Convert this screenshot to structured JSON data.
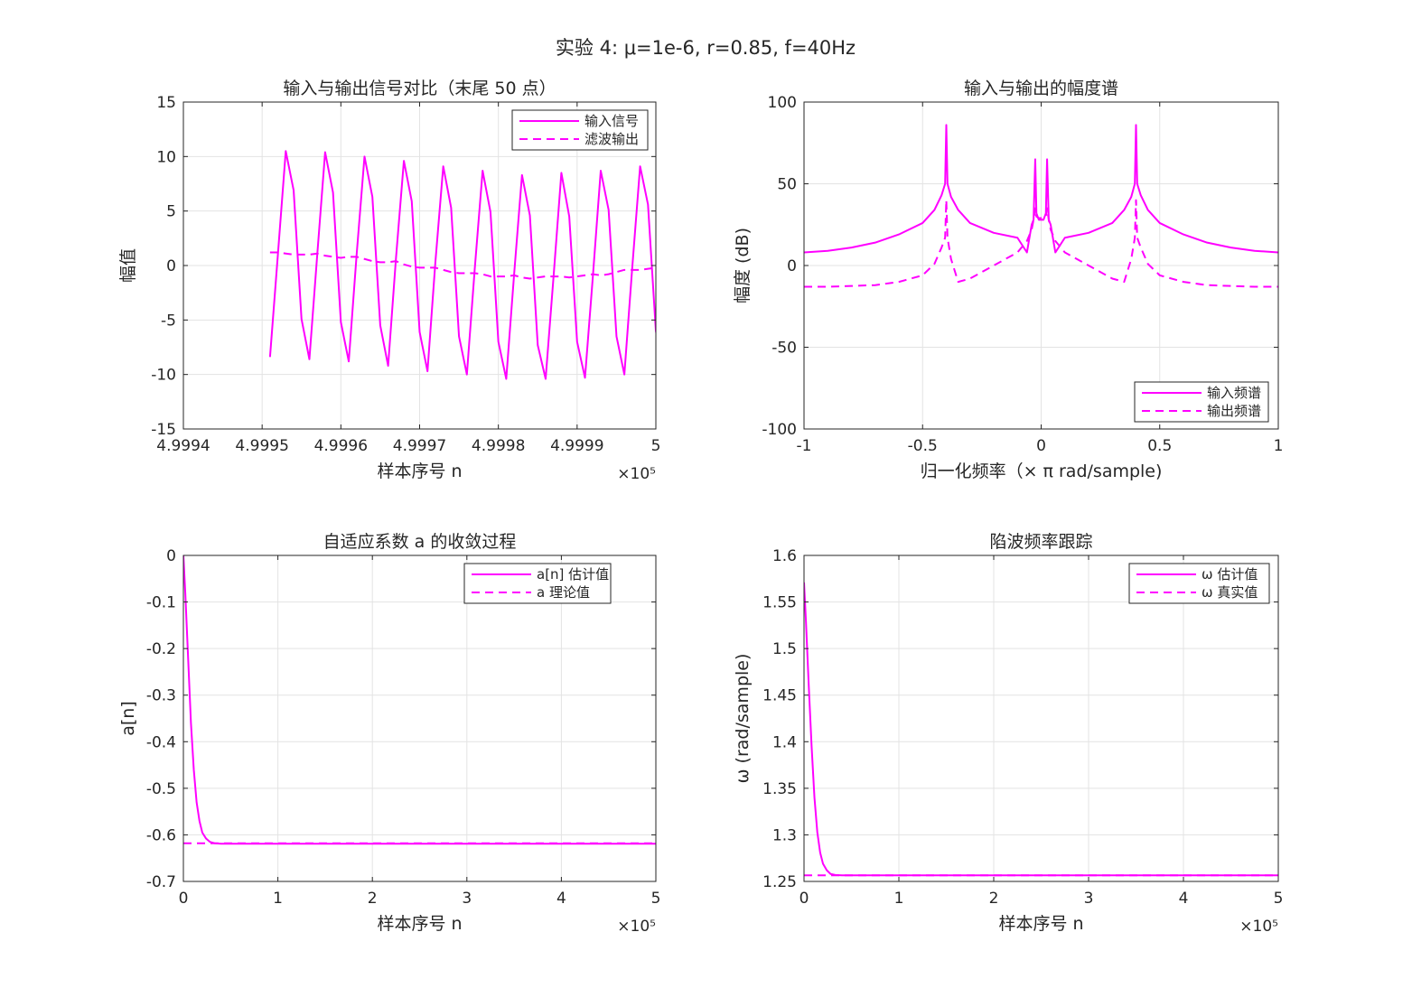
{
  "figure": {
    "suptitle": "实验 4: μ=1e-6, r=0.85, f=40Hz",
    "line_color": "#ff00ff"
  },
  "chart_data": [
    {
      "type": "line",
      "title": "输入与输出信号对比（末尾 50 点）",
      "xlabel": "样本序号 n",
      "ylabel": "幅值",
      "xlim": [
        499940,
        500000
      ],
      "ylim": [
        -15,
        15
      ],
      "xticks": [
        "4.9994",
        "4.9995",
        "4.9996",
        "4.9997",
        "4.9998",
        "4.9999",
        "5"
      ],
      "yticks": [
        "-15",
        "-10",
        "-5",
        "0",
        "5",
        "10",
        "15"
      ],
      "x_exponent": "×10⁵",
      "grid": true,
      "legend_position": "top-right",
      "x_start": 499951,
      "x_step": 1,
      "series": [
        {
          "name": "输入信号",
          "style": "solid",
          "values": [
            -8.4,
            1.0,
            10.5,
            6.9,
            -4.9,
            -8.6,
            1.0,
            10.4,
            6.7,
            -5.2,
            -8.8,
            1.0,
            10.0,
            6.3,
            -5.5,
            -9.2,
            0.7,
            9.6,
            5.9,
            -6.1,
            -9.7,
            0.3,
            9.1,
            5.3,
            -6.5,
            -10.0,
            -0.3,
            8.7,
            4.9,
            -7.0,
            -10.4,
            -0.8,
            8.3,
            4.6,
            -7.3,
            -10.4,
            -1.1,
            8.5,
            4.5,
            -7.0,
            -10.3,
            -1.0,
            8.7,
            5.1,
            -6.5,
            -10.0,
            -0.2,
            9.1,
            5.6,
            -6.0,
            -9.5
          ]
        },
        {
          "name": "滤波输出",
          "style": "dashed",
          "values": [
            null,
            null,
            null,
            null,
            null,
            null,
            null,
            null,
            null,
            null,
            null,
            null,
            null,
            null,
            null,
            null,
            null,
            null,
            null,
            null,
            null,
            null,
            null,
            null,
            null,
            null,
            null,
            null,
            null,
            null,
            null,
            null,
            null,
            null,
            null,
            null,
            null,
            null,
            null,
            null,
            null,
            null,
            null,
            null,
            null,
            null,
            null,
            null,
            null,
            null,
            null
          ]
        }
      ],
      "output_values": [
        1.2,
        1.2,
        1.1,
        1.0,
        1.0,
        1.0,
        1.1,
        0.9,
        0.8,
        0.7,
        0.8,
        0.8,
        0.6,
        0.4,
        0.3,
        0.3,
        0.4,
        0.1,
        -0.1,
        -0.2,
        -0.2,
        -0.2,
        -0.4,
        -0.6,
        -0.7,
        -0.7,
        -0.7,
        -0.8,
        -1.0,
        -1.0,
        -1.0,
        -0.9,
        -1.1,
        -1.2,
        -1.1,
        -1.0,
        -1.0,
        -1.0,
        -1.1,
        -1.0,
        -0.9,
        -0.8,
        -0.9,
        -0.8,
        -0.6,
        -0.4,
        -0.4,
        -0.4,
        -0.3,
        -0.2,
        -0.1
      ]
    },
    {
      "type": "line",
      "title": "输入与输出的幅度谱",
      "xlabel": "归一化频率（× π  rad/sample)",
      "ylabel": "幅度 (dB)",
      "xlim": [
        -1,
        1
      ],
      "ylim": [
        -100,
        100
      ],
      "xticks": [
        "-1",
        "-0.5",
        "0",
        "0.5",
        "1"
      ],
      "yticks": [
        "-100",
        "-50",
        "0",
        "50",
        "100"
      ],
      "grid": true,
      "legend_position": "bottom-right",
      "x": [
        -1.0,
        -0.9,
        -0.8,
        -0.7,
        -0.6,
        -0.5,
        -0.45,
        -0.42,
        -0.405,
        -0.4,
        -0.395,
        -0.38,
        -0.35,
        -0.3,
        -0.2,
        -0.1,
        -0.06,
        -0.04,
        -0.032,
        -0.025,
        -0.02,
        -0.01,
        0.0,
        0.01,
        0.02,
        0.025,
        0.032,
        0.04,
        0.06,
        0.1,
        0.2,
        0.3,
        0.35,
        0.38,
        0.395,
        0.4,
        0.405,
        0.42,
        0.45,
        0.5,
        0.6,
        0.7,
        0.8,
        0.9,
        1.0
      ],
      "series": [
        {
          "name": "输入频谱",
          "style": "solid",
          "values": [
            8,
            9,
            11,
            14,
            19,
            26,
            34,
            43,
            50,
            86,
            50,
            42,
            34,
            26,
            20,
            17,
            8,
            25,
            28,
            65,
            32,
            28,
            28,
            28,
            32,
            65,
            28,
            25,
            8,
            17,
            20,
            26,
            34,
            42,
            50,
            86,
            50,
            43,
            34,
            26,
            19,
            14,
            11,
            9,
            8
          ]
        },
        {
          "name": "输出频谱",
          "style": "dashed",
          "values": [
            -13,
            -13,
            -12.5,
            -12,
            -10,
            -6,
            1,
            11,
            17,
            40,
            17,
            4,
            -10,
            -8,
            0,
            8,
            15,
            22,
            28,
            35,
            30,
            29,
            29,
            29,
            30,
            35,
            28,
            22,
            15,
            8,
            0,
            -8,
            -10,
            4,
            17,
            40,
            17,
            11,
            1,
            -6,
            -10,
            -12,
            -12.5,
            -13,
            -13
          ]
        }
      ]
    },
    {
      "type": "line",
      "title": "自适应系数 a 的收敛过程",
      "xlabel": "样本序号 n",
      "ylabel": "a[n]",
      "xlim": [
        0,
        500000
      ],
      "ylim": [
        -0.7,
        0
      ],
      "xticks": [
        "0",
        "1",
        "2",
        "3",
        "4",
        "5"
      ],
      "yticks": [
        "-0.7",
        "-0.6",
        "-0.5",
        "-0.4",
        "-0.3",
        "-0.2",
        "-0.1",
        "0"
      ],
      "x_exponent": "×10⁵",
      "grid": true,
      "legend_position": "top-right",
      "x": [
        0,
        2000,
        5000,
        8000,
        11000,
        14000,
        17000,
        20000,
        24000,
        28000,
        33000,
        40000,
        50000,
        100000,
        200000,
        300000,
        400000,
        500000
      ],
      "series": [
        {
          "name": "a[n] 估计值",
          "style": "solid",
          "values": [
            0,
            -0.08,
            -0.22,
            -0.36,
            -0.46,
            -0.53,
            -0.57,
            -0.595,
            -0.608,
            -0.615,
            -0.618,
            -0.619,
            -0.619,
            -0.619,
            -0.619,
            -0.619,
            -0.619,
            -0.619
          ]
        },
        {
          "name": "a 理论值",
          "style": "dashed",
          "values": [
            -0.618,
            -0.618,
            -0.618,
            -0.618,
            -0.618,
            -0.618,
            -0.618,
            -0.618,
            -0.618,
            -0.618,
            -0.618,
            -0.618,
            -0.618,
            -0.618,
            -0.618,
            -0.618,
            -0.618,
            -0.618
          ]
        }
      ]
    },
    {
      "type": "line",
      "title": "陷波频率跟踪",
      "xlabel": "样本序号 n",
      "ylabel": "ω  (rad/sample)",
      "xlim": [
        0,
        500000
      ],
      "ylim": [
        1.25,
        1.6
      ],
      "xticks": [
        "0",
        "1",
        "2",
        "3",
        "4",
        "5"
      ],
      "yticks": [
        "1.25",
        "1.3",
        "1.35",
        "1.4",
        "1.45",
        "1.5",
        "1.55",
        "1.6"
      ],
      "x_exponent": "×10⁵",
      "grid": true,
      "legend_position": "top-right",
      "x": [
        0,
        2000,
        5000,
        8000,
        11000,
        14000,
        17000,
        20000,
        24000,
        28000,
        33000,
        40000,
        50000,
        100000,
        200000,
        300000,
        400000,
        500000
      ],
      "series": [
        {
          "name": "ω  估计值",
          "style": "solid",
          "values": [
            1.571,
            1.53,
            1.46,
            1.395,
            1.34,
            1.303,
            1.281,
            1.269,
            1.262,
            1.258,
            1.2569,
            1.2566,
            1.2566,
            1.2566,
            1.2566,
            1.2566,
            1.2566,
            1.2566
          ]
        },
        {
          "name": "ω  真实值",
          "style": "dashed",
          "values": [
            1.2566,
            1.2566,
            1.2566,
            1.2566,
            1.2566,
            1.2566,
            1.2566,
            1.2566,
            1.2566,
            1.2566,
            1.2566,
            1.2566,
            1.2566,
            1.2566,
            1.2566,
            1.2566,
            1.2566,
            1.2566
          ]
        }
      ]
    }
  ]
}
